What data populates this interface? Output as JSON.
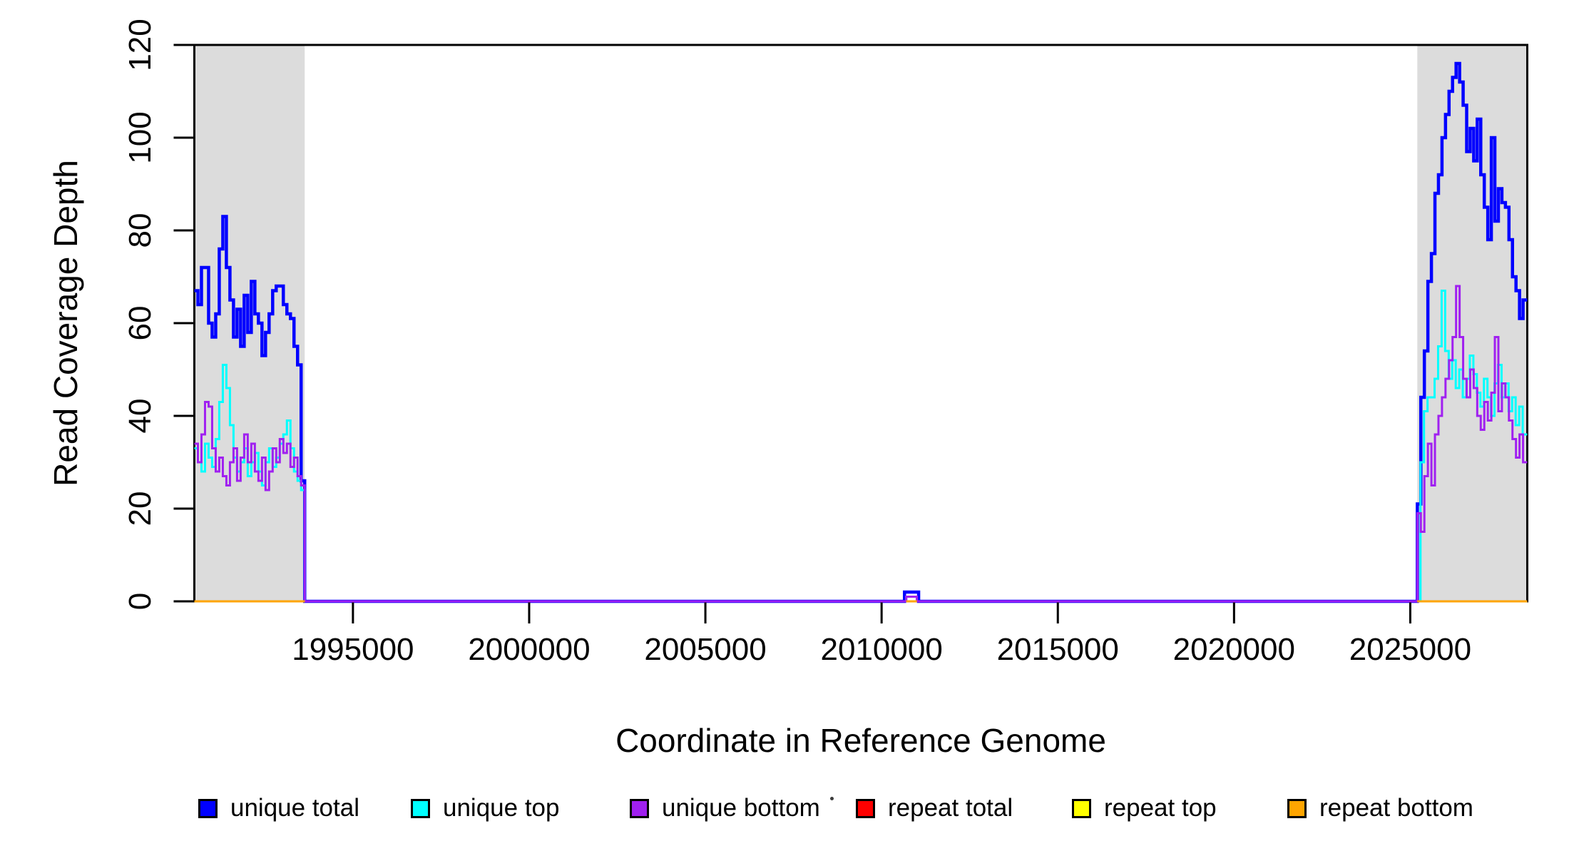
{
  "figure": {
    "background_color": "#ffffff",
    "plot_background": "#ffffff",
    "repeat_region_fill": "#dcdcdc",
    "box_color": "#000000"
  },
  "chart_data": {
    "type": "line",
    "subtype": "step-coverage-plot",
    "title": "",
    "xlabel": "Coordinate in Reference Genome",
    "ylabel": "Read Coverage Depth",
    "xlim": [
      1990500,
      2028320
    ],
    "ylim": [
      0,
      120
    ],
    "grid": false,
    "legend_position": "bottom",
    "x_axis": {
      "tick_values": [
        1995000,
        2000000,
        2005000,
        2010000,
        2015000,
        2020000,
        2025000
      ],
      "tick_labels": [
        "1995000",
        "2000000",
        "2005000",
        "2010000",
        "2015000",
        "2020000",
        "2025000"
      ]
    },
    "y_axis": {
      "tick_values": [
        0,
        20,
        40,
        60,
        80,
        100,
        120
      ],
      "tick_labels": [
        "0",
        "20",
        "40",
        "60",
        "80",
        "100",
        "120"
      ]
    },
    "shaded_regions": [
      {
        "name": "repeat-region-left",
        "x0": 1990500,
        "x1": 1993631,
        "color": "#dcdcdc"
      },
      {
        "name": "repeat-region-right",
        "x0": 2025200,
        "x1": 2028320,
        "color": "#dcdcdc"
      }
    ],
    "series": [
      {
        "name": "unique total",
        "color": "#0000ff",
        "line_width": 4.5,
        "segments": [
          {
            "x0": 1990500,
            "bin": 101,
            "enter": "edge",
            "values": [
              67,
              64,
              72,
              72,
              60,
              57,
              62,
              76,
              83,
              72,
              65,
              57,
              63,
              55,
              66,
              58,
              69,
              62,
              60,
              53,
              58,
              62,
              67,
              68,
              68,
              64,
              62,
              61,
              55,
              51,
              26
            ]
          },
          {
            "x0": 1993631,
            "bin": 17019,
            "values": [
              0
            ]
          },
          {
            "x0": 2010650,
            "bin": 400,
            "values": [
              2
            ]
          },
          {
            "x0": 2011050,
            "bin": 14150,
            "values": [
              0
            ]
          },
          {
            "x0": 2025200,
            "bin": 100,
            "extend": true,
            "values": [
              21,
              44,
              54,
              69,
              75,
              88,
              92,
              100,
              105,
              110,
              113,
              116,
              112,
              107,
              97,
              102,
              95,
              104,
              92,
              85,
              78,
              100,
              82,
              89,
              86,
              85,
              78,
              70,
              67,
              61,
              65
            ]
          }
        ]
      },
      {
        "name": "unique top",
        "color": "#00ffff",
        "line_width": 3,
        "segments": [
          {
            "x0": 1990500,
            "bin": 101,
            "enter": "edge",
            "values": [
              33,
              30,
              28,
              34,
              31,
              29,
              35,
              43,
              51,
              46,
              38,
              31,
              28,
              30,
              33,
              27,
              30,
              32,
              28,
              25,
              30,
              33,
              29,
              31,
              34,
              36,
              39,
              33,
              28,
              26,
              24
            ]
          },
          {
            "x0": 1993631,
            "bin": 17069,
            "values": [
              0
            ]
          },
          {
            "x0": 2010700,
            "bin": 300,
            "values": [
              1
            ]
          },
          {
            "x0": 2011000,
            "bin": 14290,
            "values": [
              0
            ]
          },
          {
            "x0": 2025290,
            "bin": 100,
            "extend": true,
            "values": [
              30,
              41,
              44,
              44,
              48,
              55,
              67,
              54,
              48,
              52,
              46,
              50,
              44,
              48,
              53,
              49,
              45,
              42,
              48,
              44,
              40,
              47,
              51,
              44,
              47,
              41,
              44,
              38,
              42,
              36
            ]
          }
        ]
      },
      {
        "name": "unique bottom",
        "color": "#a020f0",
        "line_width": 3,
        "segments": [
          {
            "x0": 1990500,
            "bin": 101,
            "enter": "edge",
            "values": [
              34,
              30,
              36,
              43,
              42,
              33,
              28,
              31,
              27,
              25,
              30,
              33,
              26,
              31,
              36,
              30,
              34,
              28,
              26,
              31,
              24,
              28,
              33,
              30,
              35,
              32,
              34,
              29,
              31,
              27,
              25
            ]
          },
          {
            "x0": 1993631,
            "bin": 17069,
            "values": [
              0
            ]
          },
          {
            "x0": 2010700,
            "bin": 300,
            "values": [
              1
            ]
          },
          {
            "x0": 2011000,
            "bin": 14200,
            "values": [
              0
            ]
          },
          {
            "x0": 2025200,
            "bin": 100,
            "extend": true,
            "values": [
              19,
              15,
              27,
              34,
              25,
              36,
              40,
              44,
              48,
              52,
              57,
              68,
              57,
              48,
              44,
              50,
              46,
              40,
              37,
              43,
              39,
              45,
              57,
              41,
              47,
              44,
              39,
              35,
              31,
              36,
              30
            ]
          }
        ]
      },
      {
        "name": "repeat total",
        "color": "#ff0000",
        "line_width": 3,
        "segments": [
          {
            "x0": 1990500,
            "bin": 3131,
            "enter": "zero",
            "values": [
              0
            ]
          },
          {
            "x0": 2010700,
            "bin": 300,
            "enter": "zero",
            "values": [
              0
            ]
          },
          {
            "x0": 2025200,
            "bin": 3120,
            "enter": "zero",
            "values": [
              0
            ]
          }
        ]
      },
      {
        "name": "repeat top",
        "color": "#ffff00",
        "line_width": 3,
        "segments": [
          {
            "x0": 1990500,
            "bin": 3131,
            "enter": "zero",
            "values": [
              0
            ]
          },
          {
            "x0": 2010700,
            "bin": 300,
            "enter": "zero",
            "values": [
              0
            ]
          },
          {
            "x0": 2025200,
            "bin": 3120,
            "enter": "zero",
            "values": [
              0
            ]
          }
        ]
      },
      {
        "name": "repeat bottom",
        "color": "#ffa500",
        "line_width": 3,
        "segments": [
          {
            "x0": 1990500,
            "bin": 3131,
            "enter": "zero",
            "values": [
              0
            ]
          },
          {
            "x0": 2010700,
            "bin": 300,
            "enter": "zero",
            "values": [
              0
            ]
          },
          {
            "x0": 2025200,
            "bin": 3120,
            "enter": "zero",
            "values": [
              0
            ]
          }
        ]
      }
    ]
  },
  "legend": {
    "items": [
      {
        "label": "unique total",
        "color": "#0000ff"
      },
      {
        "label": "unique top",
        "color": "#00ffff"
      },
      {
        "label": "unique bottom",
        "color": "#a020f0"
      },
      {
        "label": "repeat total",
        "color": "#ff0000"
      },
      {
        "label": "repeat top",
        "color": "#ffff00"
      },
      {
        "label": "repeat bottom",
        "color": "#ffa500"
      }
    ]
  }
}
